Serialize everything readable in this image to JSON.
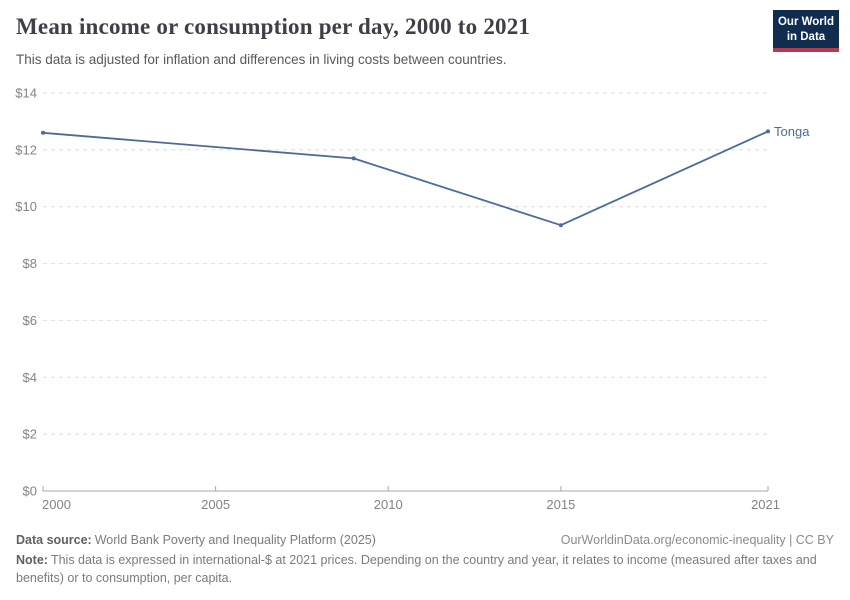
{
  "header": {
    "title": "Mean income or consumption per day, 2000 to 2021",
    "subtitle": "This data is adjusted for inflation and differences in living costs between countries.",
    "logo": {
      "line1": "Our World",
      "line2": "in Data"
    }
  },
  "chart_data": {
    "type": "line",
    "title": "Mean income or consumption per day, 2000 to 2021",
    "xlabel": "",
    "ylabel": "",
    "xlim": [
      2000,
      2021
    ],
    "ylim": [
      0,
      14
    ],
    "x_ticks": [
      2000,
      2005,
      2010,
      2015,
      2021
    ],
    "x_tick_labels": [
      "2000",
      "2005",
      "2010",
      "2015",
      "2021"
    ],
    "y_ticks": [
      0,
      2,
      4,
      6,
      8,
      10,
      12,
      14
    ],
    "y_tick_labels": [
      "$0",
      "$2",
      "$4",
      "$6",
      "$8",
      "$10",
      "$12",
      "$14"
    ],
    "grid": "horizontal-dashed",
    "legend_position": "end-of-line-label",
    "series": [
      {
        "name": "Tonga",
        "end_label": "Tonga",
        "color": "#4c6a9c",
        "x": [
          2000,
          2009,
          2015,
          2021
        ],
        "values": [
          12.6,
          11.7,
          9.35,
          12.65
        ]
      }
    ],
    "colors": {
      "gridline": "#dddddd",
      "axis": "#a9a9a9",
      "tick_label": "#848484"
    }
  },
  "footer": {
    "datasource_label": "Data source:",
    "datasource": "World Bank Poverty and Inequality Platform (2025)",
    "license": "OurWorldinData.org/economic-inequality | CC BY",
    "note_label": "Note:",
    "note": "This data is expressed in international-$ at 2021 prices. Depending on the country and year, it relates to income (measured after taxes and benefits) or to consumption, per capita."
  }
}
